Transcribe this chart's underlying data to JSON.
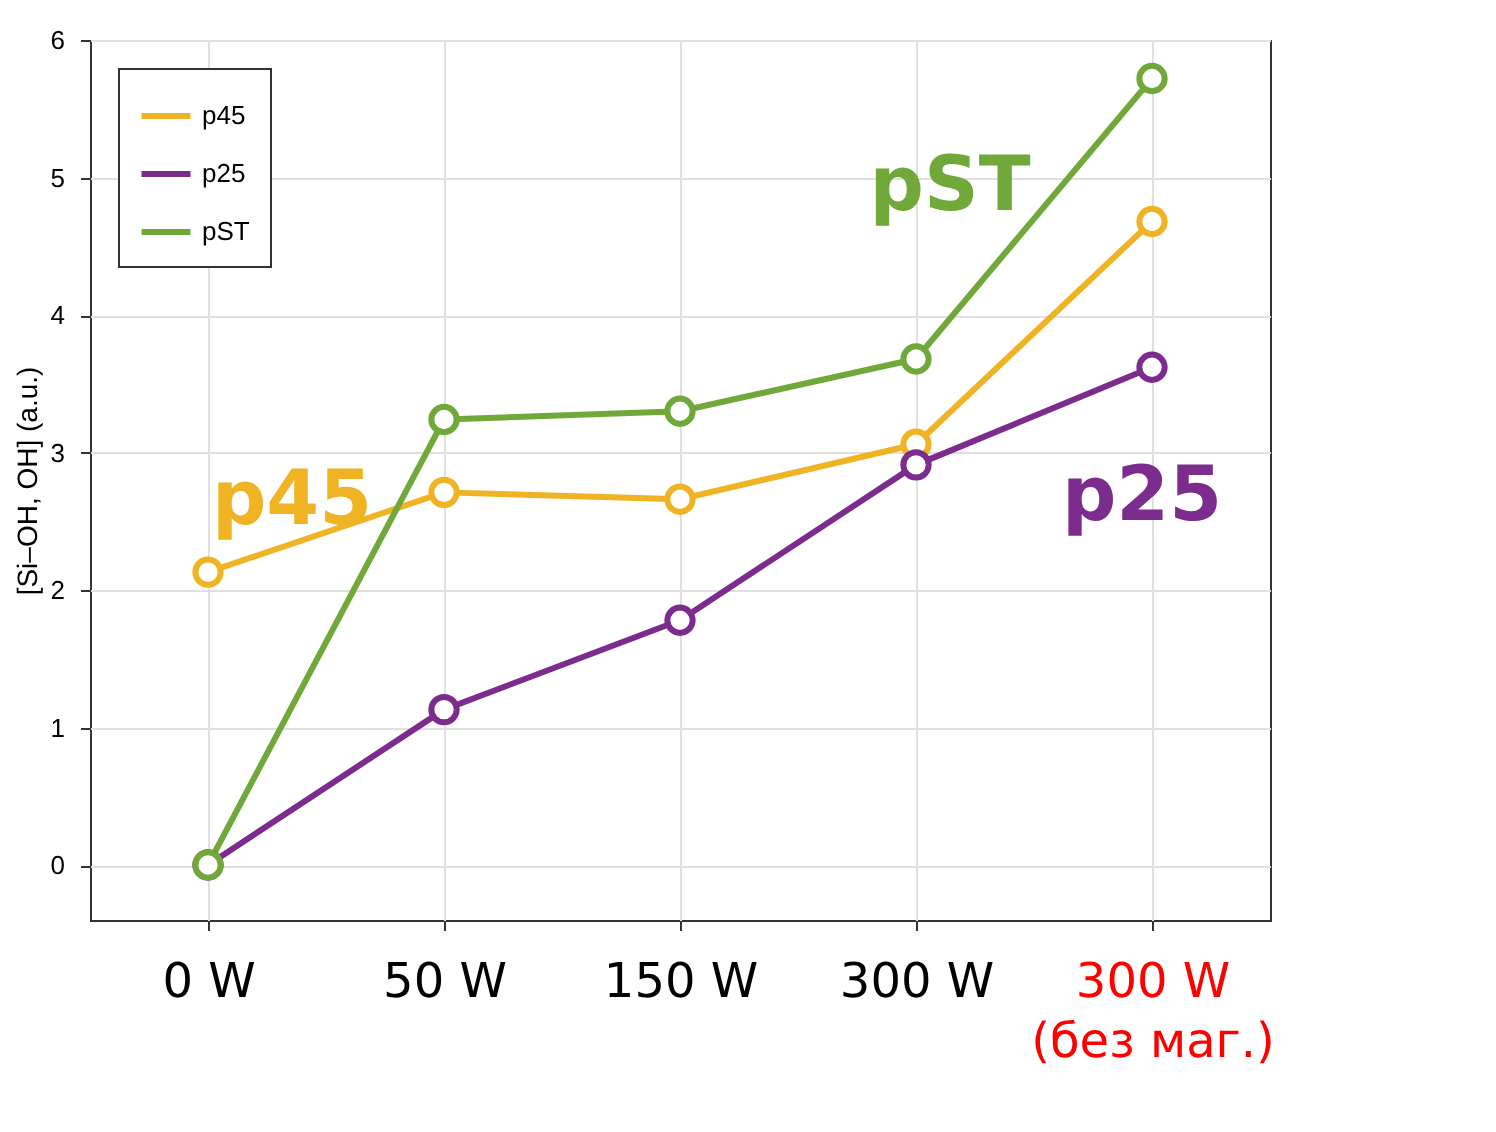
{
  "chart_data": {
    "type": "line",
    "ylabel": "[Si–OH, OH] (a.u.)",
    "categories": [
      "0 W",
      "50 W",
      "150 W",
      "300 W",
      "300 W\n(без маг.)"
    ],
    "series": [
      {
        "name": "p45",
        "color": "#f0b323",
        "values": [
          2.13,
          2.71,
          2.66,
          3.06,
          4.68
        ]
      },
      {
        "name": "p25",
        "color": "#7b2c8c",
        "values": [
          0,
          1.13,
          1.78,
          2.91,
          3.62
        ]
      },
      {
        "name": "pST",
        "color": "#70a83a",
        "values": [
          0,
          3.24,
          3.3,
          3.68,
          5.72
        ]
      }
    ],
    "ylim": [
      -0.4,
      6
    ],
    "yticks": [
      0,
      1,
      2,
      3,
      4,
      5,
      6
    ],
    "annotations": [
      "p45",
      "p25",
      "pST"
    ],
    "grid": true,
    "legend": "top left",
    "marker": "circle",
    "line_style": "solid"
  }
}
